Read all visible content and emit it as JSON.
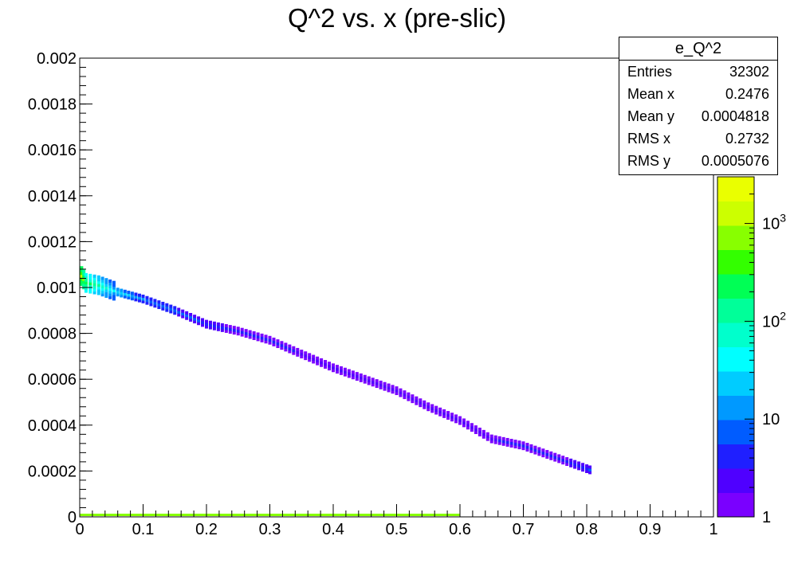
{
  "chart_data": {
    "type": "heatmap",
    "title": "Q^2 vs. x (pre-slic)",
    "xlabel": "",
    "ylabel": "",
    "xlim": [
      0,
      1
    ],
    "ylim": [
      0,
      0.002
    ],
    "x_ticks": [
      "0",
      "0.1",
      "0.2",
      "0.3",
      "0.4",
      "0.5",
      "0.6",
      "0.7",
      "0.8",
      "0.9",
      "1"
    ],
    "y_ticks": [
      "0",
      "0.0002",
      "0.0004",
      "0.0006",
      "0.0008",
      "0.001",
      "0.0012",
      "0.0014",
      "0.0016",
      "0.0018",
      "0.002"
    ],
    "z_scale": "log",
    "z_ticks": [
      "1",
      "10",
      "10^2",
      "10^3"
    ],
    "grid": false,
    "band_points": [
      {
        "x": 0.003,
        "y": 0.00105,
        "count": 1000
      },
      {
        "x": 0.01,
        "y": 0.00102,
        "count": 300
      },
      {
        "x": 0.03,
        "y": 0.00101,
        "count": 100
      },
      {
        "x": 0.06,
        "y": 0.00098,
        "count": 30
      },
      {
        "x": 0.1,
        "y": 0.00095,
        "count": 10
      },
      {
        "x": 0.15,
        "y": 0.0009,
        "count": 8
      },
      {
        "x": 0.2,
        "y": 0.00084,
        "count": 5
      },
      {
        "x": 0.25,
        "y": 0.00081,
        "count": 4
      },
      {
        "x": 0.3,
        "y": 0.00077,
        "count": 4
      },
      {
        "x": 0.35,
        "y": 0.00071,
        "count": 3
      },
      {
        "x": 0.4,
        "y": 0.00065,
        "count": 3
      },
      {
        "x": 0.45,
        "y": 0.0006,
        "count": 2
      },
      {
        "x": 0.5,
        "y": 0.00055,
        "count": 2
      },
      {
        "x": 0.55,
        "y": 0.00048,
        "count": 2
      },
      {
        "x": 0.6,
        "y": 0.00042,
        "count": 3
      },
      {
        "x": 0.65,
        "y": 0.00034,
        "count": 3
      },
      {
        "x": 0.7,
        "y": 0.00031,
        "count": 4
      },
      {
        "x": 0.75,
        "y": 0.00026,
        "count": 4
      },
      {
        "x": 0.8,
        "y": 0.00021,
        "count": 5
      },
      {
        "x": 0.81,
        "y": 0.0002,
        "count": 8
      }
    ],
    "zero_band": {
      "x_range": [
        0,
        0.6
      ],
      "y": 0
    }
  },
  "stats": {
    "title": "e_Q^2",
    "rows": [
      {
        "label": "Entries",
        "value": "32302"
      },
      {
        "label": "Mean x",
        "value": "0.2476"
      },
      {
        "label": "Mean y",
        "value": "0.0004818"
      },
      {
        "label": "RMS x",
        "value": "0.2732"
      },
      {
        "label": "RMS y",
        "value": "0.0005076"
      }
    ]
  },
  "colors": {
    "palette": [
      "#7a00ff",
      "#4f00ff",
      "#1f1fff",
      "#005cff",
      "#0099ff",
      "#00ccff",
      "#00ffff",
      "#00ffcc",
      "#00ff99",
      "#00ff55",
      "#33ff00",
      "#88ff00",
      "#ccff00",
      "#eaff00"
    ]
  }
}
